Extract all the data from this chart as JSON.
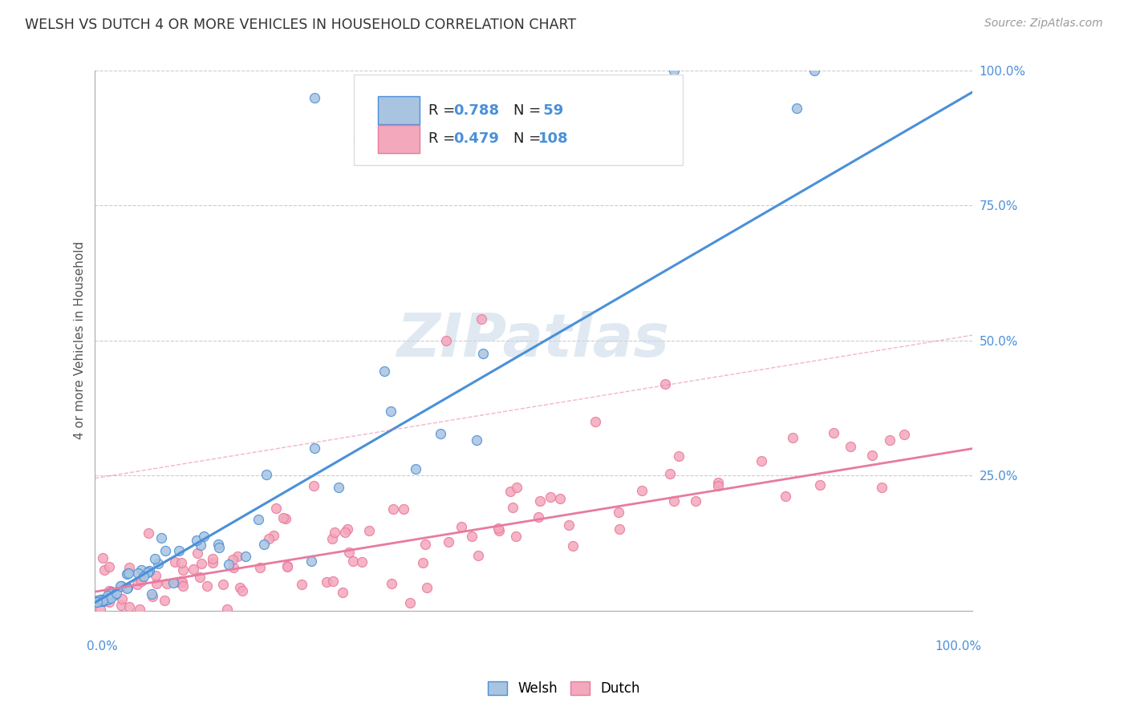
{
  "title": "WELSH VS DUTCH 4 OR MORE VEHICLES IN HOUSEHOLD CORRELATION CHART",
  "source": "Source: ZipAtlas.com",
  "ylabel": "4 or more Vehicles in Household",
  "welsh_R": 0.788,
  "welsh_N": 59,
  "dutch_R": 0.479,
  "dutch_N": 108,
  "welsh_fill_color": "#a8c4e0",
  "dutch_fill_color": "#f4a8bb",
  "welsh_edge_color": "#4a90d9",
  "dutch_edge_color": "#e87aa0",
  "watermark": "ZIPatlas",
  "watermark_color": "#c8d8e8",
  "blue_text_color": "#4a90d9",
  "grid_color": "#cccccc",
  "bg_color": "#ffffff"
}
